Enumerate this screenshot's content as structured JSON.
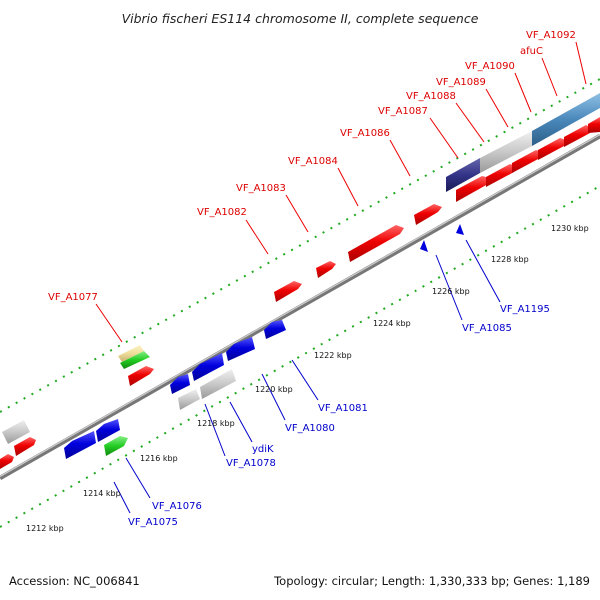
{
  "title": "Vibrio fischeri ES114 chromosome II, complete sequence",
  "footer": {
    "accession": "Accession: NC_006841",
    "topology": "Topology: circular; Length: 1,330,333 bp; Genes: 1,189"
  },
  "colors": {
    "forward_gene": "#ee0000",
    "reverse_gene": "#0000dd",
    "other_gene": "#c8c8c8",
    "green_gene": "#22cc22",
    "tan_gene": "#eedd99",
    "navy_gene": "#333388",
    "steel_gene": "#4a88bb",
    "backbone": "#888888",
    "tick": "#22aa22",
    "forward_label": "#dd0000",
    "reverse_label": "#0000cc"
  },
  "scale": {
    "unit": "kbp",
    "labels": [
      "1212 kbp",
      "1214 kbp",
      "1216 kbp",
      "1218 kbp",
      "1220 kbp",
      "1222 kbp",
      "1224 kbp",
      "1226 kbp",
      "1228 kbp",
      "1230 kbp"
    ]
  },
  "forward_labels": [
    "VF_A1077",
    "VF_A1082",
    "VF_A1083",
    "VF_A1084",
    "VF_A1086",
    "VF_A1087",
    "VF_A1088",
    "VF_A1089",
    "VF_A1090",
    "afuC",
    "VF_A1092"
  ],
  "reverse_labels": [
    "VF_A1075",
    "VF_A1076",
    "VF_A1078",
    "ydiK",
    "VF_A1080",
    "VF_A1081",
    "VF_A1085",
    "VF_A1195"
  ],
  "genes": {
    "forward_red_count": 13,
    "reverse_blue_count": 9,
    "gray_count": 5,
    "green_count": 2,
    "tan_count": 1,
    "navy_count": 1,
    "steelblue_count": 1
  }
}
